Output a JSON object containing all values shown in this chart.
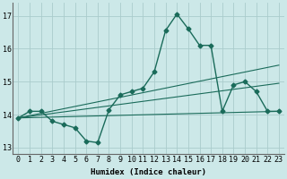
{
  "xlabel": "Humidex (Indice chaleur)",
  "background_color": "#cce8e8",
  "grid_color": "#aacccc",
  "line_color": "#1a6b5a",
  "xlim": [
    -0.5,
    23.5
  ],
  "ylim": [
    12.8,
    17.4
  ],
  "yticks": [
    13,
    14,
    15,
    16,
    17
  ],
  "xticks": [
    0,
    1,
    2,
    3,
    4,
    5,
    6,
    7,
    8,
    9,
    10,
    11,
    12,
    13,
    14,
    15,
    16,
    17,
    18,
    19,
    20,
    21,
    22,
    23
  ],
  "main_x": [
    0,
    1,
    2,
    3,
    4,
    5,
    6,
    7,
    8,
    9,
    10,
    11,
    12,
    13,
    14,
    15,
    16,
    17,
    18,
    19,
    20,
    21,
    22,
    23
  ],
  "main_y": [
    13.9,
    14.1,
    14.1,
    13.8,
    13.7,
    13.6,
    13.2,
    13.15,
    14.15,
    14.6,
    14.7,
    14.8,
    15.3,
    16.55,
    17.05,
    16.6,
    16.1,
    16.1,
    14.1,
    14.9,
    15.0,
    14.7,
    14.1,
    14.1
  ],
  "trend_lines": [
    {
      "x": [
        0,
        23
      ],
      "y": [
        13.9,
        14.1
      ]
    },
    {
      "x": [
        0,
        23
      ],
      "y": [
        13.9,
        14.95
      ]
    },
    {
      "x": [
        0,
        23
      ],
      "y": [
        13.9,
        15.5
      ]
    }
  ],
  "extra_line": {
    "x": [
      0,
      3,
      6,
      7,
      8,
      9,
      10,
      11,
      12,
      13,
      14,
      15,
      16,
      17,
      18,
      19,
      20,
      21,
      22,
      23
    ],
    "y": [
      13.9,
      13.85,
      13.2,
      13.15,
      14.15,
      14.6,
      14.7,
      14.8,
      15.3,
      16.55,
      17.05,
      16.6,
      16.1,
      16.1,
      14.1,
      14.9,
      15.0,
      14.7,
      14.1,
      14.1
    ]
  }
}
